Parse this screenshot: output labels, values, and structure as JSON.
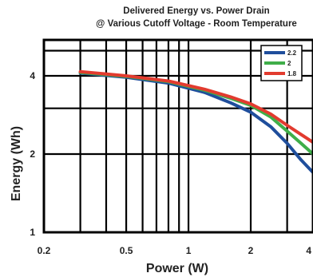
{
  "chart_data": {
    "type": "line",
    "title": "Delivered Energy vs. Power Drain",
    "subtitle": "@ Various Cutoff Voltage - Room Temperature",
    "xlabel": "Power (W)",
    "ylabel": "Energy (Wh)",
    "x_scale": "log",
    "y_scale": "log",
    "xlim": [
      0.2,
      4
    ],
    "ylim": [
      1,
      5.5
    ],
    "x_ticks": [
      "0.2",
      "0.5",
      "1",
      "2",
      "4"
    ],
    "y_ticks": [
      "1",
      "2",
      "4"
    ],
    "grid": true,
    "legend_position": "top-right",
    "series": [
      {
        "name": "2.2",
        "color": "#1f4e9c",
        "points": [
          [
            0.3,
            4.1
          ],
          [
            0.5,
            3.95
          ],
          [
            0.8,
            3.75
          ],
          [
            1.2,
            3.45
          ],
          [
            1.6,
            3.15
          ],
          [
            2.0,
            2.9
          ],
          [
            2.5,
            2.55
          ],
          [
            3.0,
            2.2
          ],
          [
            3.5,
            1.9
          ],
          [
            4.0,
            1.7
          ]
        ]
      },
      {
        "name": "2",
        "color": "#3fae49",
        "points": [
          [
            0.3,
            4.12
          ],
          [
            0.5,
            3.98
          ],
          [
            0.8,
            3.8
          ],
          [
            1.2,
            3.52
          ],
          [
            1.6,
            3.28
          ],
          [
            2.0,
            3.08
          ],
          [
            2.5,
            2.78
          ],
          [
            3.0,
            2.45
          ],
          [
            3.5,
            2.2
          ],
          [
            4.0,
            2.0
          ]
        ]
      },
      {
        "name": "1.8",
        "color": "#e23b2f",
        "points": [
          [
            0.3,
            4.15
          ],
          [
            0.5,
            4.0
          ],
          [
            0.8,
            3.82
          ],
          [
            1.2,
            3.55
          ],
          [
            1.6,
            3.32
          ],
          [
            2.0,
            3.12
          ],
          [
            2.5,
            2.85
          ],
          [
            3.0,
            2.58
          ],
          [
            3.5,
            2.38
          ],
          [
            4.0,
            2.22
          ]
        ]
      }
    ]
  }
}
